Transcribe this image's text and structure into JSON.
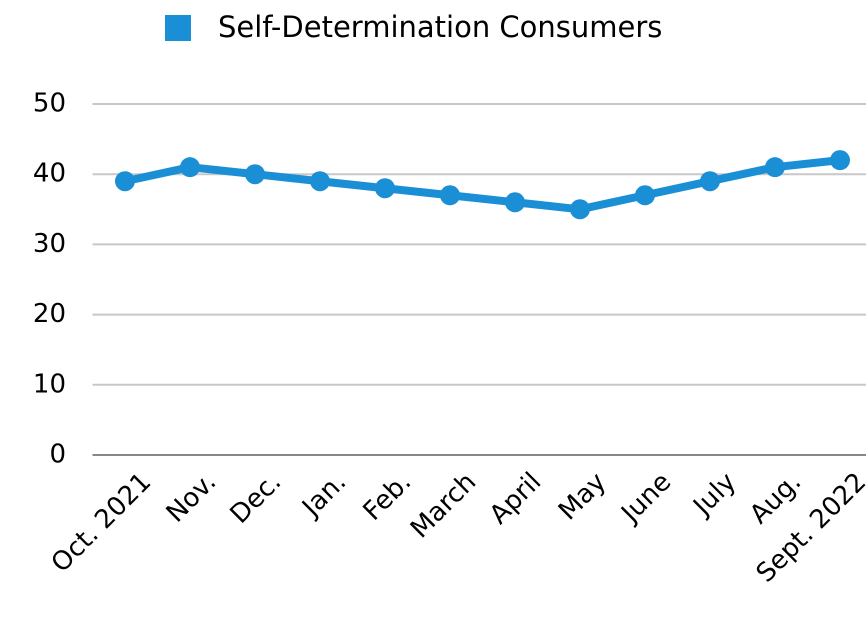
{
  "chart_data": {
    "type": "line",
    "categories": [
      "Oct. 2021",
      "Nov.",
      "Dec.",
      "Jan.",
      "Feb.",
      "March",
      "April",
      "May",
      "June",
      "July",
      "Aug.",
      "Sept. 2022"
    ],
    "series": [
      {
        "name": "Self-Determination Consumers",
        "color": "#1b8fd5",
        "values": [
          39,
          41,
          40,
          39,
          38,
          37,
          36,
          35,
          37,
          39,
          41,
          42
        ]
      }
    ],
    "ylim": [
      0,
      50
    ],
    "yticks": [
      0,
      10,
      20,
      30,
      40,
      50
    ],
    "grid": true,
    "legend": "top"
  }
}
